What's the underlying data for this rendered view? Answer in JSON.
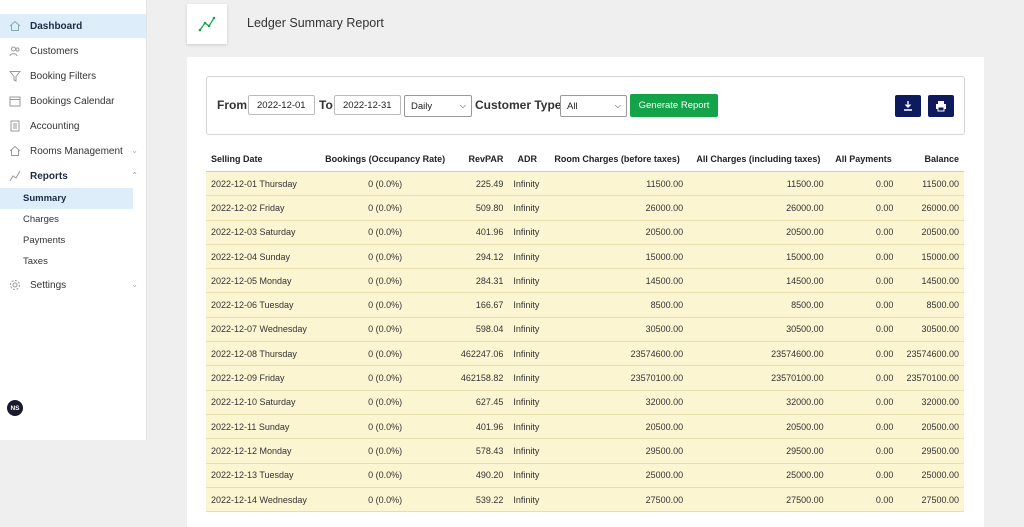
{
  "sidebar": {
    "items": [
      {
        "label": "Dashboard",
        "icon": "home-icon"
      },
      {
        "label": "Customers",
        "icon": "users-icon"
      },
      {
        "label": "Booking Filters",
        "icon": "filter-icon"
      },
      {
        "label": "Bookings Calendar",
        "icon": "calendar-icon"
      },
      {
        "label": "Accounting",
        "icon": "ledger-icon"
      },
      {
        "label": "Rooms Management",
        "icon": "building-icon"
      },
      {
        "label": "Reports",
        "icon": "chart-line-icon"
      },
      {
        "label": "Settings",
        "icon": "gear-icon"
      }
    ],
    "report_subitems": [
      "Summary",
      "Charges",
      "Payments",
      "Taxes"
    ],
    "avatar_initials": "NS"
  },
  "header": {
    "title": "Ledger Summary Report"
  },
  "filters": {
    "from_label": "From",
    "from_value": "2022-12-01",
    "to_label": "To",
    "to_value": "2022-12-31",
    "period_value": "Daily",
    "customer_type_label": "Customer Type",
    "customer_type_value": "All",
    "generate_label": "Generate Report"
  },
  "table": {
    "headers": [
      "Selling Date",
      "Bookings (Occupancy Rate)",
      "RevPAR",
      "ADR",
      "Room Charges (before taxes)",
      "All Charges (including taxes)",
      "All Payments",
      "Balance"
    ],
    "rows": [
      [
        "2022-12-01 Thursday",
        "0 (0.0%)",
        "225.49",
        "Infinity",
        "11500.00",
        "11500.00",
        "0.00",
        "11500.00"
      ],
      [
        "2022-12-02 Friday",
        "0 (0.0%)",
        "509.80",
        "Infinity",
        "26000.00",
        "26000.00",
        "0.00",
        "26000.00"
      ],
      [
        "2022-12-03 Saturday",
        "0 (0.0%)",
        "401.96",
        "Infinity",
        "20500.00",
        "20500.00",
        "0.00",
        "20500.00"
      ],
      [
        "2022-12-04 Sunday",
        "0 (0.0%)",
        "294.12",
        "Infinity",
        "15000.00",
        "15000.00",
        "0.00",
        "15000.00"
      ],
      [
        "2022-12-05 Monday",
        "0 (0.0%)",
        "284.31",
        "Infinity",
        "14500.00",
        "14500.00",
        "0.00",
        "14500.00"
      ],
      [
        "2022-12-06 Tuesday",
        "0 (0.0%)",
        "166.67",
        "Infinity",
        "8500.00",
        "8500.00",
        "0.00",
        "8500.00"
      ],
      [
        "2022-12-07 Wednesday",
        "0 (0.0%)",
        "598.04",
        "Infinity",
        "30500.00",
        "30500.00",
        "0.00",
        "30500.00"
      ],
      [
        "2022-12-08 Thursday",
        "0 (0.0%)",
        "462247.06",
        "Infinity",
        "23574600.00",
        "23574600.00",
        "0.00",
        "23574600.00"
      ],
      [
        "2022-12-09 Friday",
        "0 (0.0%)",
        "462158.82",
        "Infinity",
        "23570100.00",
        "23570100.00",
        "0.00",
        "23570100.00"
      ],
      [
        "2022-12-10 Saturday",
        "0 (0.0%)",
        "627.45",
        "Infinity",
        "32000.00",
        "32000.00",
        "0.00",
        "32000.00"
      ],
      [
        "2022-12-11 Sunday",
        "0 (0.0%)",
        "401.96",
        "Infinity",
        "20500.00",
        "20500.00",
        "0.00",
        "20500.00"
      ],
      [
        "2022-12-12 Monday",
        "0 (0.0%)",
        "578.43",
        "Infinity",
        "29500.00",
        "29500.00",
        "0.00",
        "29500.00"
      ],
      [
        "2022-12-13 Tuesday",
        "0 (0.0%)",
        "490.20",
        "Infinity",
        "25000.00",
        "25000.00",
        "0.00",
        "25000.00"
      ],
      [
        "2022-12-14 Wednesday",
        "0 (0.0%)",
        "539.22",
        "Infinity",
        "27500.00",
        "27500.00",
        "0.00",
        "27500.00"
      ]
    ]
  },
  "colors": {
    "accent": "#15a34a",
    "nav_active": "#ddeefa",
    "row_bg": "#fbf5d2",
    "icon_btn": "#0d1b5e"
  }
}
